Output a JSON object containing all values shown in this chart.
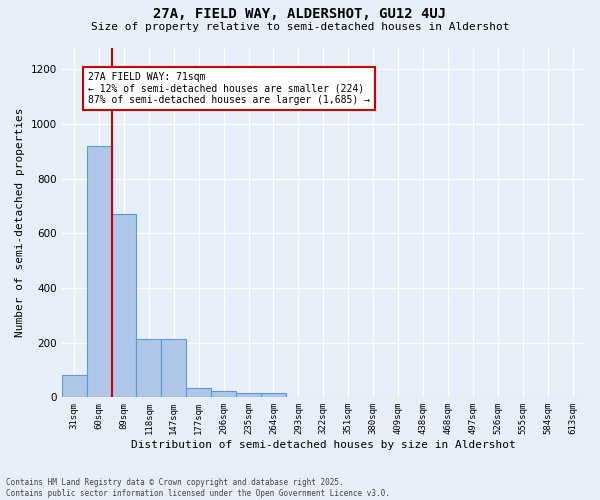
{
  "title1": "27A, FIELD WAY, ALDERSHOT, GU12 4UJ",
  "title2": "Size of property relative to semi-detached houses in Aldershot",
  "xlabel": "Distribution of semi-detached houses by size in Aldershot",
  "ylabel": "Number of semi-detached properties",
  "annotation_title": "27A FIELD WAY: 71sqm",
  "annotation_line1": "← 12% of semi-detached houses are smaller (224)",
  "annotation_line2": "87% of semi-detached houses are larger (1,685) →",
  "footer1": "Contains HM Land Registry data © Crown copyright and database right 2025.",
  "footer2": "Contains public sector information licensed under the Open Government Licence v3.0.",
  "categories": [
    "31sqm",
    "60sqm",
    "89sqm",
    "118sqm",
    "147sqm",
    "177sqm",
    "206sqm",
    "235sqm",
    "264sqm",
    "293sqm",
    "322sqm",
    "351sqm",
    "380sqm",
    "409sqm",
    "438sqm",
    "468sqm",
    "497sqm",
    "526sqm",
    "555sqm",
    "584sqm",
    "613sqm"
  ],
  "values": [
    80,
    920,
    670,
    215,
    215,
    35,
    25,
    15,
    15,
    0,
    0,
    0,
    0,
    0,
    0,
    0,
    0,
    0,
    0,
    0,
    0
  ],
  "bar_color": "#aec6e8",
  "bar_edge_color": "#5b9bd5",
  "redline_x": 1.5,
  "ylim": [
    0,
    1280
  ],
  "yticks": [
    0,
    200,
    400,
    600,
    800,
    1000,
    1200
  ],
  "background_color": "#e8eef7",
  "grid_color": "#ffffff",
  "annotation_box_color": "#ffffff",
  "annotation_box_edge": "#cc0000",
  "redline_color": "#cc0000"
}
